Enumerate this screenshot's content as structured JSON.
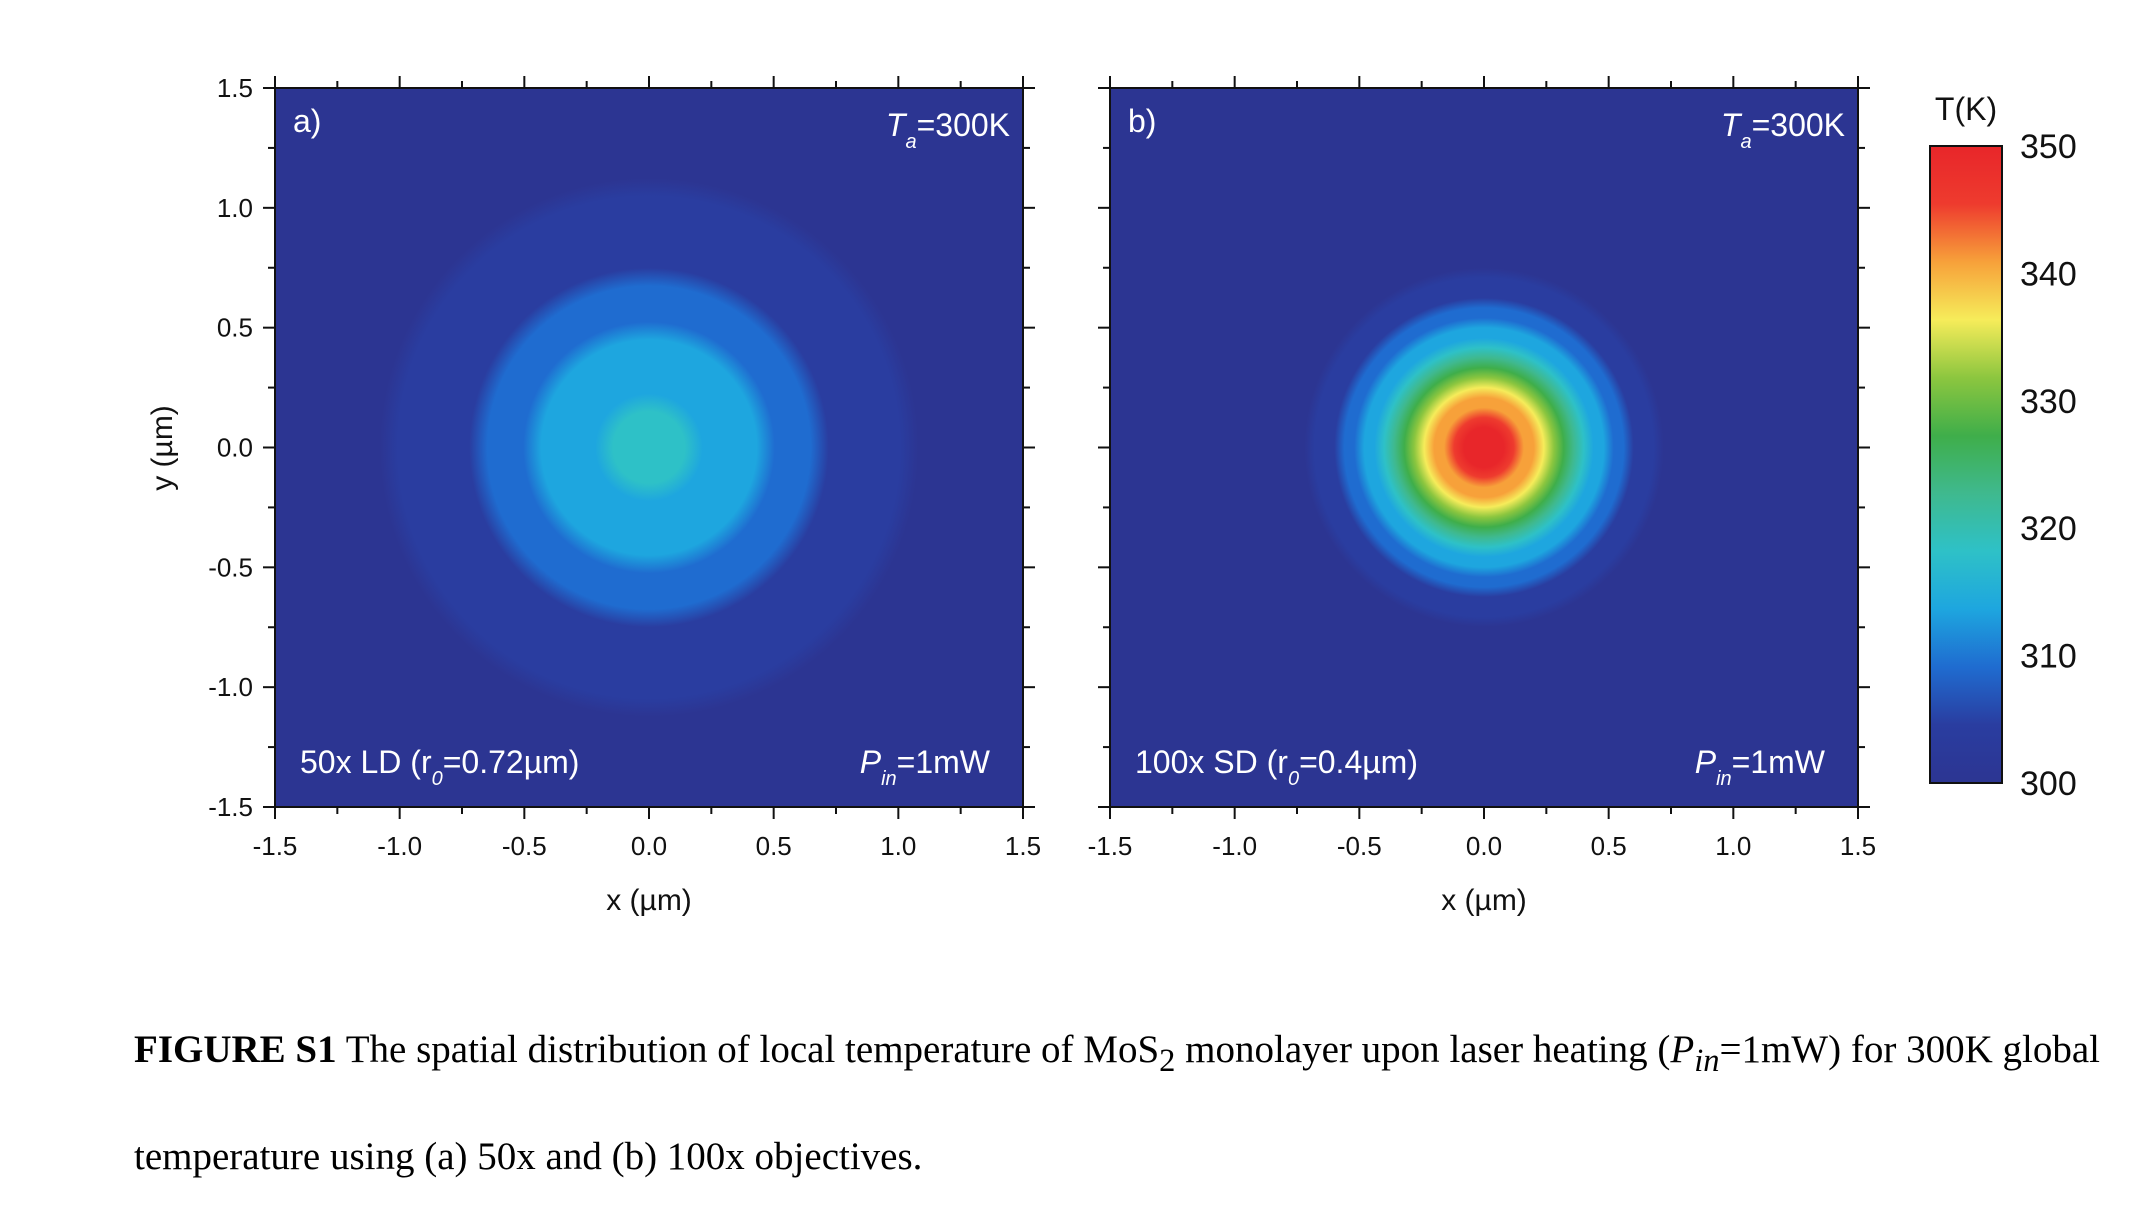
{
  "chart_data": [
    {
      "type": "heatmap",
      "panel_label": "a)",
      "xlabel": "x (µm)",
      "ylabel": "y (µm)",
      "xlim": [
        -1.5,
        1.5
      ],
      "ylim": [
        -1.5,
        1.5
      ],
      "xticks": [
        "-1.5",
        "-1.0",
        "-0.5",
        "0.0",
        "0.5",
        "1.0",
        "1.5"
      ],
      "yticks": [
        "-1.5",
        "-1.0",
        "-0.5",
        "0.0",
        "0.5",
        "1.0",
        "1.5"
      ],
      "ambient": {
        "prefix": "T",
        "sub": "a",
        "suffix": "=300K"
      },
      "objective": {
        "prefix": "50x LD (r",
        "sub": "0",
        "suffix": "=0.72µm)"
      },
      "power": {
        "prefix": "P",
        "sub": "in",
        "suffix": "=1mW"
      },
      "peak_temperature": 317,
      "base_temperature": 300,
      "beam_radius": 0.72,
      "center": [
        0,
        0
      ]
    },
    {
      "type": "heatmap",
      "panel_label": "b)",
      "xlabel": "x (µm)",
      "xlim": [
        -1.5,
        1.5
      ],
      "ylim": [
        -1.5,
        1.5
      ],
      "xticks": [
        "-1.5",
        "-1.0",
        "-0.5",
        "0.0",
        "0.5",
        "1.0",
        "1.5"
      ],
      "ambient": {
        "prefix": "T",
        "sub": "a",
        "suffix": "=300K"
      },
      "objective": {
        "prefix": "100x SD (r",
        "sub": "0",
        "suffix": "=0.4µm)"
      },
      "power": {
        "prefix": "P",
        "sub": "in",
        "suffix": "=1mW"
      },
      "peak_temperature": 350,
      "base_temperature": 300,
      "beam_radius": 0.4,
      "center": [
        0,
        0
      ]
    }
  ],
  "colorbar": {
    "title": "T(K)",
    "min": 300,
    "max": 350,
    "ticks": [
      "350",
      "340",
      "330",
      "320",
      "310",
      "300"
    ],
    "colors": [
      "#2c3592",
      "#2a3da0",
      "#1f6cd0",
      "#1ea6df",
      "#2ec1c7",
      "#3fb98e",
      "#3fae4a",
      "#8cc63f",
      "#f6ec5a",
      "#f7a13a",
      "#ee3b2e",
      "#e8262a"
    ]
  },
  "caption": {
    "lead": "FIGURE S1",
    "text1": " The spatial distribution of local temperature of MoS",
    "sub2": "2",
    "text2": " monolayer upon laser heating (",
    "pin": "P",
    "pin_sub": "in",
    "text3": "=1mW) for 300K global temperature using (a) 50x and (b) 100x objectives."
  }
}
